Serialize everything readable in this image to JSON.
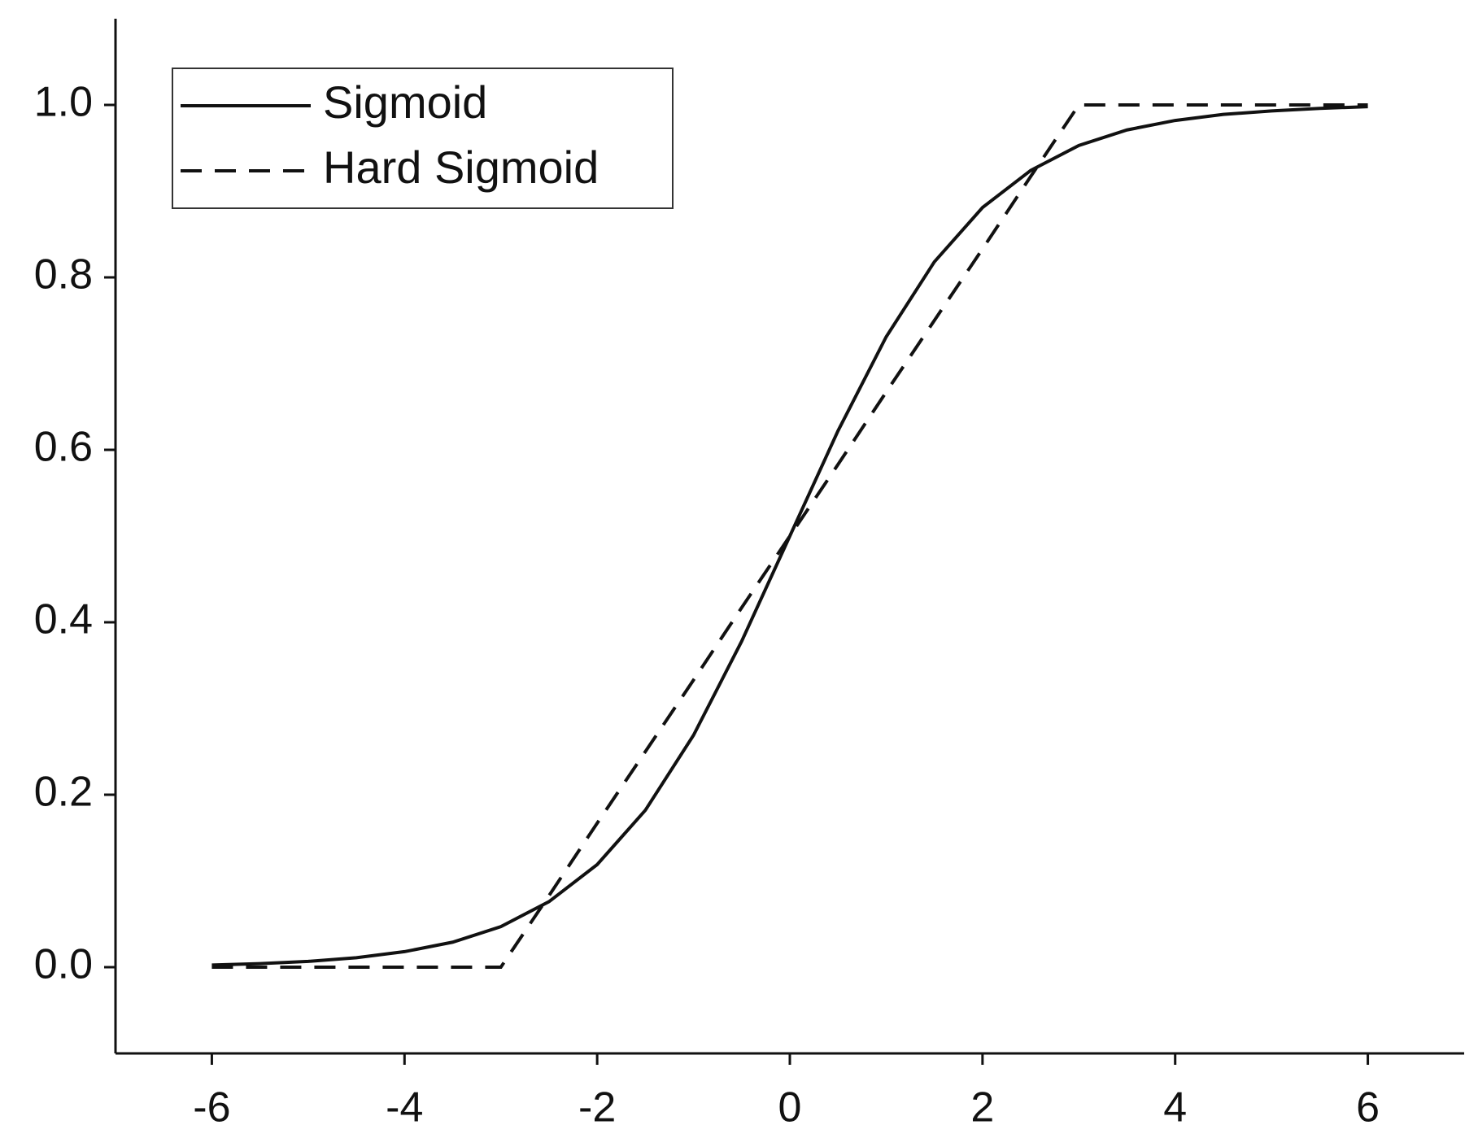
{
  "chart_data": {
    "type": "line",
    "x": [
      -6,
      -5.5,
      -5,
      -4.5,
      -4,
      -3.5,
      -3,
      -2.5,
      -2,
      -1.5,
      -1,
      -0.5,
      0,
      0.5,
      1,
      1.5,
      2,
      2.5,
      3,
      3.5,
      4,
      4.5,
      5,
      5.5,
      6
    ],
    "series": [
      {
        "name": "Sigmoid",
        "color": "#111111",
        "dash": "solid",
        "values": [
          0.0025,
          0.0041,
          0.0067,
          0.011,
          0.018,
          0.029,
          0.047,
          0.076,
          0.119,
          0.182,
          0.269,
          0.378,
          0.5,
          0.622,
          0.731,
          0.818,
          0.881,
          0.924,
          0.953,
          0.971,
          0.982,
          0.989,
          0.993,
          0.996,
          0.998
        ]
      },
      {
        "name": "Hard Sigmoid",
        "color": "#111111",
        "dash": "dashed",
        "values": [
          0,
          0,
          0,
          0,
          0,
          0,
          0,
          0.083,
          0.167,
          0.25,
          0.333,
          0.417,
          0.5,
          0.583,
          0.667,
          0.75,
          0.833,
          0.917,
          1,
          1,
          1,
          1,
          1,
          1,
          1
        ]
      }
    ],
    "xlim": [
      -7,
      7
    ],
    "xticks": [
      -6,
      -4,
      -2,
      0,
      2,
      4,
      6
    ],
    "ylim": [
      -0.1,
      1.1
    ],
    "yticks": [
      {
        "value": 0,
        "label": "0.0"
      },
      0.2,
      0.4,
      0.6,
      0.8,
      {
        "value": 1,
        "label": "1.0"
      }
    ],
    "grid": false,
    "legend": "upper-left"
  }
}
